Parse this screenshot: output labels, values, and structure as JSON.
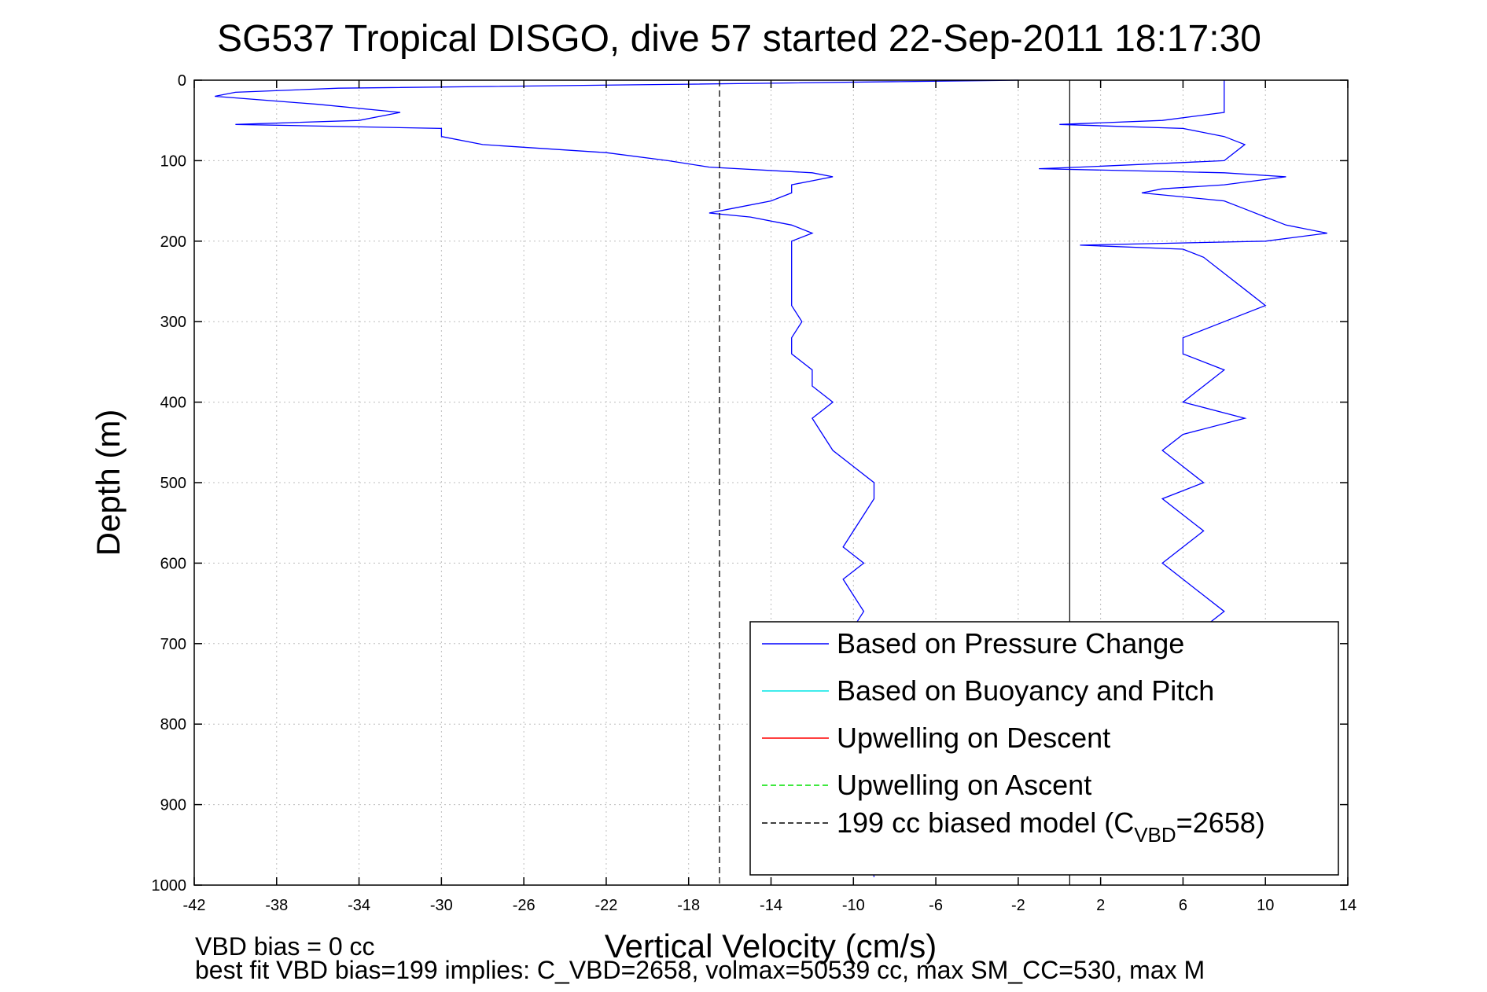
{
  "chart_data": {
    "type": "line",
    "title": "SG537 Tropical DISGO, dive 57 started 22-Sep-2011 18:17:30",
    "xlabel": "Vertical Velocity (cm/s)",
    "ylabel": "Depth (m)",
    "xlim": [
      -42,
      14
    ],
    "ylim": [
      0,
      1000
    ],
    "y_reversed": true,
    "grid": true,
    "legend_position": "bottom-right",
    "x_ticks": [
      "-42",
      "-38",
      "-34",
      "-30",
      "-26",
      "-22",
      "-18",
      "-14",
      "-10",
      "-6",
      "-2",
      "2",
      "6",
      "10",
      "14"
    ],
    "y_ticks": [
      "0",
      "100",
      "200",
      "300",
      "400",
      "500",
      "600",
      "700",
      "800",
      "900",
      "1000"
    ],
    "vertical_reference_line_x": 0.5,
    "series": [
      {
        "name": "Based on Pressure Change",
        "color": "#0000ff",
        "style": "solid",
        "depth": [
          0,
          5,
          10,
          15,
          20,
          30,
          40,
          50,
          55,
          60,
          70,
          80,
          90,
          100,
          108,
          115,
          120,
          125,
          130,
          140,
          150,
          160,
          165,
          170,
          180,
          190,
          200,
          220,
          240,
          260,
          280,
          300,
          320,
          340,
          360,
          380,
          400,
          420,
          440,
          460,
          480,
          500,
          520,
          540,
          560,
          580,
          600,
          620,
          640,
          660,
          680,
          990
        ],
        "x": [
          -2,
          -18,
          -35,
          -40,
          -41,
          -36,
          -32,
          -34,
          -40,
          -30,
          -30,
          -28,
          -22,
          -19,
          -17,
          -12,
          -11,
          -12,
          -13,
          -13,
          -14,
          -16,
          -17,
          -15,
          -13,
          -12,
          -13,
          -13,
          -13,
          -13,
          -13,
          -12.5,
          -13,
          -13,
          -12,
          -12,
          -11,
          -12,
          -11.5,
          -11,
          -10,
          -9,
          -9,
          -9.5,
          -10,
          -10.5,
          -9.5,
          -10.5,
          -10,
          -9.5,
          -10,
          -9
        ]
      },
      {
        "name": "Based on Pressure Change",
        "color": "#0000ff",
        "style": "solid",
        "depth": [
          0,
          20,
          40,
          50,
          55,
          60,
          70,
          80,
          100,
          108,
          110,
          115,
          120,
          130,
          135,
          140,
          150,
          160,
          170,
          180,
          190,
          200,
          205,
          210,
          220,
          240,
          260,
          280,
          300,
          320,
          340,
          360,
          380,
          400,
          420,
          440,
          460,
          480,
          500,
          520,
          540,
          560,
          580,
          600,
          620,
          640,
          660,
          680
        ],
        "x": [
          8,
          8,
          8,
          5,
          0,
          6,
          8,
          9,
          8,
          1,
          -1,
          8,
          11,
          8,
          5,
          4,
          8,
          9,
          10,
          11,
          13,
          10,
          1,
          6,
          7,
          8,
          9,
          10,
          8,
          6,
          6,
          8,
          7,
          6,
          9,
          6,
          5,
          6,
          7,
          5,
          6,
          7,
          6,
          5,
          6,
          7,
          8,
          7
        ]
      },
      {
        "name": "Based on Buoyancy and Pitch",
        "color": "#00e5e5",
        "style": "solid",
        "depth": [],
        "x": []
      },
      {
        "name": "Upwelling on Descent",
        "color": "#ff0000",
        "style": "solid",
        "depth": [],
        "x": []
      },
      {
        "name": "Upwelling on Ascent",
        "color": "#00e000",
        "style": "dashed",
        "depth": [],
        "x": []
      },
      {
        "name": "199 cc biased model (C_VBD=2658)",
        "color": "#000000",
        "style": "dashed",
        "depth": [
          0,
          1000
        ],
        "x": [
          -16.5,
          -16.5
        ]
      }
    ],
    "legend": [
      {
        "label": "Based on Pressure Change",
        "color": "#0000ff",
        "style": "solid"
      },
      {
        "label": "Based on Buoyancy and Pitch",
        "color": "#00e5e5",
        "style": "solid"
      },
      {
        "label": "Upwelling on Descent",
        "color": "#ff0000",
        "style": "solid"
      },
      {
        "label": "Upwelling on Ascent",
        "color": "#00e000",
        "style": "dashed"
      },
      {
        "label_main": "199 cc biased model (C",
        "label_sub": "VBD",
        "label_end": "=2658)",
        "color": "#000000",
        "style": "dashed"
      }
    ],
    "footer_line1": "VBD bias = 0 cc",
    "footer_line2": "best fit VBD bias=199 implies: C_VBD=2658, volmax=50539 cc, max SM_CC=530, max M"
  }
}
